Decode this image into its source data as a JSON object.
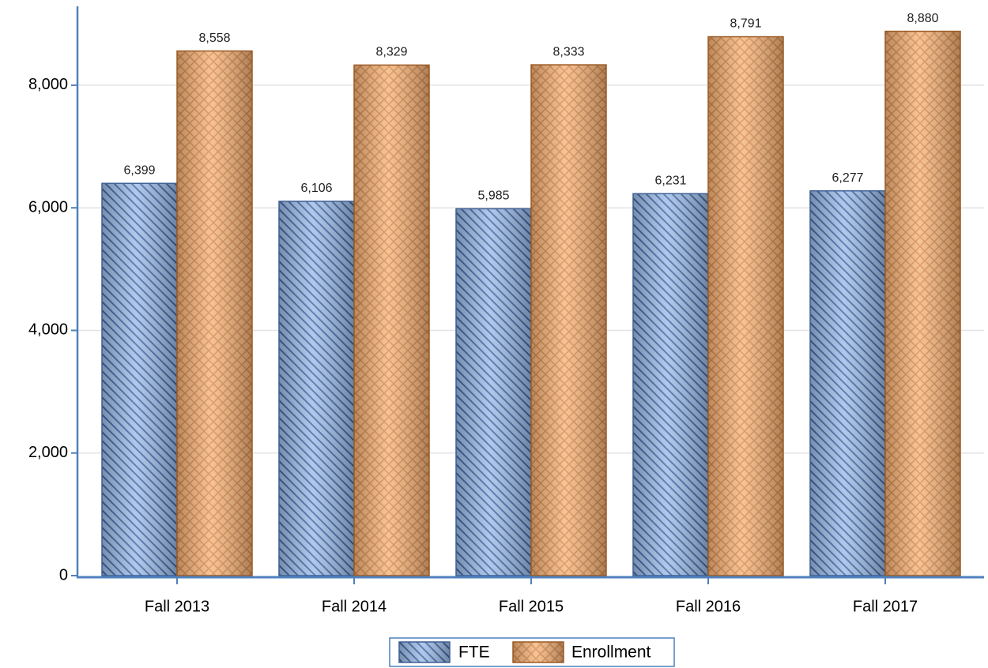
{
  "chart_data": {
    "type": "bar",
    "categories": [
      "Fall 2013",
      "Fall 2014",
      "Fall 2015",
      "Fall 2016",
      "Fall 2017"
    ],
    "series": [
      {
        "name": "FTE",
        "color": "#9dbbe6",
        "values": [
          6399,
          6106,
          5985,
          6231,
          6277
        ],
        "value_labels": [
          "6,399",
          "6,106",
          "5,985",
          "6,231",
          "6,277"
        ]
      },
      {
        "name": "Enrollment",
        "color": "#f6b47a",
        "values": [
          8558,
          8329,
          8333,
          8791,
          8880
        ],
        "value_labels": [
          "8,558",
          "8,329",
          "8,333",
          "8,791",
          "8,880"
        ]
      }
    ],
    "ylim": [
      0,
      9300
    ],
    "yticks": [
      0,
      {
        "value": 2000,
        "label": "2,000"
      },
      {
        "value": 4000,
        "label": "4,000"
      },
      {
        "value": 6000,
        "label": "6,000"
      },
      {
        "value": 8000,
        "label": "8,000"
      }
    ],
    "grid": true,
    "legend": "bottom"
  }
}
